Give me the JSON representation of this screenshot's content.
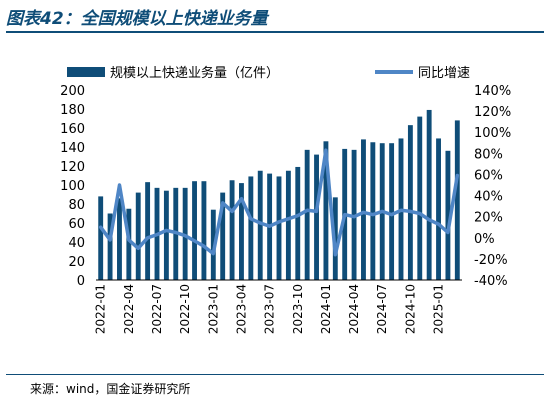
{
  "figure": {
    "title": "图表42：全国规模以上快递业务量",
    "source": "来源：wind，国金证券研究所"
  },
  "colors": {
    "bar": "#0f4d78",
    "line": "#4f86c6",
    "title": "#0f4d78"
  },
  "chart_data": {
    "type": "bar",
    "legend_position": "top",
    "grid": false,
    "x": [
      "2022-01",
      "2022-02",
      "2022-03",
      "2022-04",
      "2022-05",
      "2022-06",
      "2022-07",
      "2022-08",
      "2022-09",
      "2022-10",
      "2022-11",
      "2022-12",
      "2023-01",
      "2023-02",
      "2023-03",
      "2023-04",
      "2023-05",
      "2023-06",
      "2023-07",
      "2023-08",
      "2023-09",
      "2023-10",
      "2023-11",
      "2023-12",
      "2024-01",
      "2024-02",
      "2024-03",
      "2024-04",
      "2024-05",
      "2024-06",
      "2024-07",
      "2024-08",
      "2024-09",
      "2024-10",
      "2024-11",
      "2024-12",
      "2025-01",
      "2025-02",
      "2025-03"
    ],
    "x_tick_labels": [
      "2022-01",
      "2022-04",
      "2022-07",
      "2022-10",
      "2023-01",
      "2023-04",
      "2023-07",
      "2023-10",
      "2024-01",
      "2024-04",
      "2024-07",
      "2024-10",
      "2025-01"
    ],
    "series": [
      {
        "name": "规模以上快递业务量（亿件）",
        "type": "bar",
        "axis": "left",
        "values": [
          88,
          70,
          86,
          75,
          92,
          103,
          97,
          94,
          97,
          97,
          104,
          104,
          74,
          92,
          105,
          102,
          109,
          115,
          112,
          109,
          115,
          119,
          137,
          132,
          146,
          87,
          138,
          137,
          148,
          145,
          144,
          144,
          149,
          163,
          172,
          179,
          149,
          136,
          168
        ]
      },
      {
        "name": "同比增速",
        "type": "line",
        "axis": "right",
        "values": [
          10,
          -2,
          50,
          -2,
          -10,
          0,
          3,
          7,
          5,
          2,
          -3,
          -8,
          -15,
          33,
          25,
          37,
          18,
          14,
          11,
          15,
          18,
          21,
          26,
          25,
          83,
          -16,
          22,
          20,
          24,
          22,
          25,
          22,
          26,
          25,
          23,
          17,
          13,
          5,
          59
        ]
      }
    ],
    "y_left": {
      "min": 0,
      "max": 200,
      "ticks": [
        "0",
        "20",
        "40",
        "60",
        "80",
        "100",
        "120",
        "140",
        "160",
        "180",
        "200"
      ]
    },
    "y_right": {
      "min": -40,
      "max": 140,
      "ticks": [
        "-40%",
        "-20%",
        "0%",
        "20%",
        "40%",
        "60%",
        "80%",
        "100%",
        "120%",
        "140%"
      ]
    }
  }
}
